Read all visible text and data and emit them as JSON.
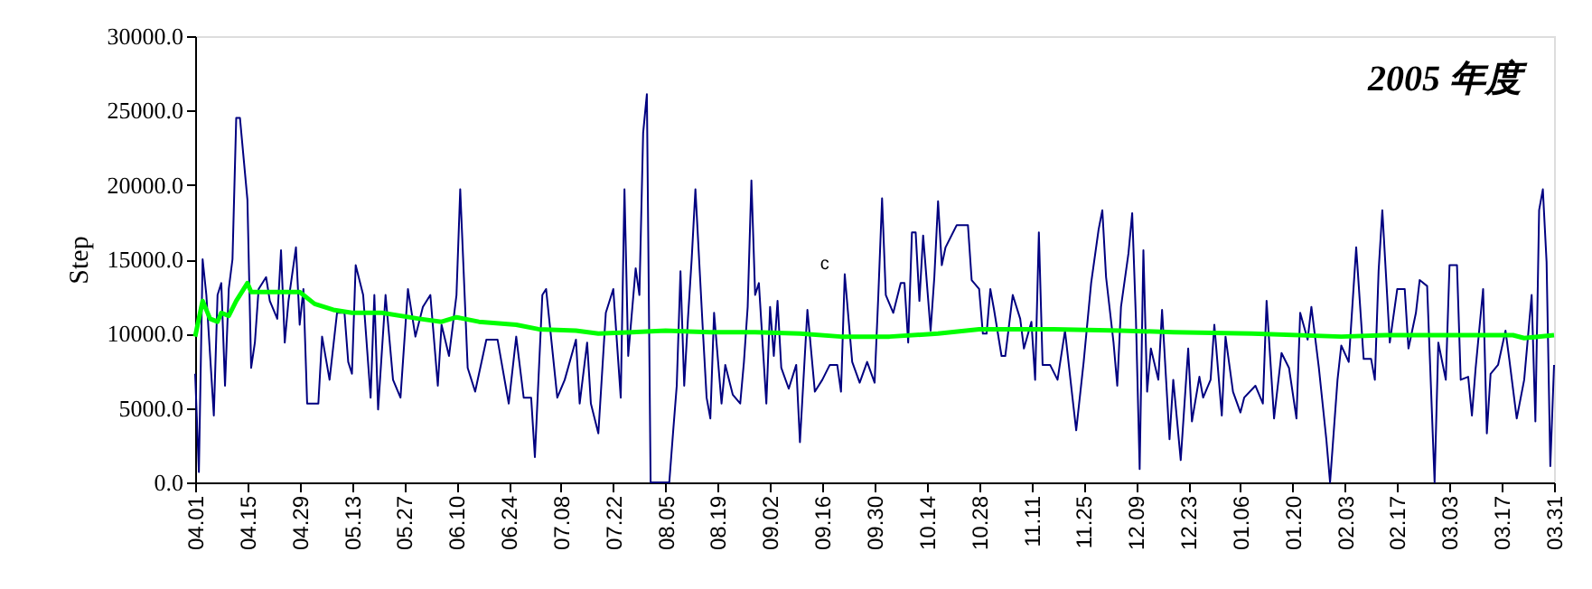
{
  "chart_data": {
    "type": "line",
    "title": "2005 年度",
    "ylabel": "Step",
    "xlim": [
      "2005-04-01",
      "2006-03-31"
    ],
    "ylim": [
      0,
      30000
    ],
    "xticks": [
      {
        "value": "2005-04-01",
        "label": "04.01"
      },
      {
        "value": "2005-04-15",
        "label": "04.15"
      },
      {
        "value": "2005-04-29",
        "label": "04.29"
      },
      {
        "value": "2005-05-13",
        "label": "05.13"
      },
      {
        "value": "2005-05-27",
        "label": "05.27"
      },
      {
        "value": "2005-06-10",
        "label": "06.10"
      },
      {
        "value": "2005-06-24",
        "label": "06.24"
      },
      {
        "value": "2005-07-08",
        "label": "07.08"
      },
      {
        "value": "2005-07-22",
        "label": "07.22"
      },
      {
        "value": "2005-08-05",
        "label": "08.05"
      },
      {
        "value": "2005-08-19",
        "label": "08.19"
      },
      {
        "value": "2005-09-02",
        "label": "09.02"
      },
      {
        "value": "2005-09-16",
        "label": "09.16"
      },
      {
        "value": "2005-09-30",
        "label": "09.30"
      },
      {
        "value": "2005-10-14",
        "label": "10.14"
      },
      {
        "value": "2005-10-28",
        "label": "10.28"
      },
      {
        "value": "2005-11-11",
        "label": "11.11"
      },
      {
        "value": "2005-11-25",
        "label": "11.25"
      },
      {
        "value": "2005-12-09",
        "label": "12.09"
      },
      {
        "value": "2005-12-23",
        "label": "12.23"
      },
      {
        "value": "2006-01-06",
        "label": "01.06"
      },
      {
        "value": "2006-01-20",
        "label": "01.20"
      },
      {
        "value": "2006-02-03",
        "label": "02.03"
      },
      {
        "value": "2006-02-17",
        "label": "02.17"
      },
      {
        "value": "2006-03-03",
        "label": "03.03"
      },
      {
        "value": "2006-03-17",
        "label": "03.17"
      },
      {
        "value": "2006-03-31",
        "label": "03.31"
      }
    ],
    "yticks": [
      {
        "value": 0,
        "label": "0.0"
      },
      {
        "value": 5000,
        "label": "5000.0"
      },
      {
        "value": 10000,
        "label": "10000.0"
      },
      {
        "value": 15000,
        "label": "15000.0"
      },
      {
        "value": 20000,
        "label": "20000.0"
      },
      {
        "value": 25000,
        "label": "25000.0"
      },
      {
        "value": 30000,
        "label": "30000.0"
      }
    ],
    "grid": false,
    "marker": "none",
    "line_style": "solid",
    "annotations": [
      "c"
    ],
    "series": [
      {
        "color": "#000080",
        "x": [
          "2005-04-01",
          "2005-04-02",
          "2005-04-03",
          "2005-04-04",
          "2005-04-06",
          "2005-04-07",
          "2005-04-08",
          "2005-04-09",
          "2005-04-10",
          "2005-04-11",
          "2005-04-12",
          "2005-04-13",
          "2005-04-15",
          "2005-04-16",
          "2005-04-17",
          "2005-04-18",
          "2005-04-20",
          "2005-04-21",
          "2005-04-23",
          "2005-04-24",
          "2005-04-25",
          "2005-04-26",
          "2005-04-28",
          "2005-04-29",
          "2005-04-30",
          "2005-05-01",
          "2005-05-04",
          "2005-05-05",
          "2005-05-07",
          "2005-05-09",
          "2005-05-11",
          "2005-05-12",
          "2005-05-13",
          "2005-05-14",
          "2005-05-16",
          "2005-05-18",
          "2005-05-19",
          "2005-05-20",
          "2005-05-22",
          "2005-05-24",
          "2005-05-26",
          "2005-05-28",
          "2005-05-30",
          "2005-06-01",
          "2005-06-03",
          "2005-06-05",
          "2005-06-06",
          "2005-06-08",
          "2005-06-10",
          "2005-06-11",
          "2005-06-13",
          "2005-06-15",
          "2005-06-18",
          "2005-06-21",
          "2005-06-24",
          "2005-06-26",
          "2005-06-28",
          "2005-06-30",
          "2005-07-01",
          "2005-07-03",
          "2005-07-04",
          "2005-07-07",
          "2005-07-09",
          "2005-07-12",
          "2005-07-13",
          "2005-07-15",
          "2005-07-16",
          "2005-07-18",
          "2005-07-20",
          "2005-07-22",
          "2005-07-24",
          "2005-07-25",
          "2005-07-26",
          "2005-07-28",
          "2005-07-29",
          "2005-07-30",
          "2005-07-31",
          "2005-08-01",
          "2005-08-06",
          "2005-08-07",
          "2005-08-08",
          "2005-08-09",
          "2005-08-10",
          "2005-08-11",
          "2005-08-12",
          "2005-08-13",
          "2005-08-15",
          "2005-08-16",
          "2005-08-17",
          "2005-08-18",
          "2005-08-20",
          "2005-08-21",
          "2005-08-23",
          "2005-08-25",
          "2005-08-26",
          "2005-08-27",
          "2005-08-28",
          "2005-08-29",
          "2005-08-30",
          "2005-09-01",
          "2005-09-02",
          "2005-09-03",
          "2005-09-04",
          "2005-09-05",
          "2005-09-07",
          "2005-09-09",
          "2005-09-10",
          "2005-09-12",
          "2005-09-14",
          "2005-09-16",
          "2005-09-18",
          "2005-09-20",
          "2005-09-21",
          "2005-09-22",
          "2005-09-24",
          "2005-09-26",
          "2005-09-28",
          "2005-09-30",
          "2005-10-01",
          "2005-10-02",
          "2005-10-03",
          "2005-10-05",
          "2005-10-07",
          "2005-10-08",
          "2005-10-09",
          "2005-10-10",
          "2005-10-11",
          "2005-10-12",
          "2005-10-13",
          "2005-10-15",
          "2005-10-16",
          "2005-10-17",
          "2005-10-18",
          "2005-10-19",
          "2005-10-22",
          "2005-10-25",
          "2005-10-26",
          "2005-10-28",
          "2005-10-29",
          "2005-10-30",
          "2005-10-31",
          "2005-11-01",
          "2005-11-03",
          "2005-11-04",
          "2005-11-06",
          "2005-11-08",
          "2005-11-09",
          "2005-11-11",
          "2005-11-12",
          "2005-11-13",
          "2005-11-14",
          "2005-11-16",
          "2005-11-18",
          "2005-11-20",
          "2005-11-22",
          "2005-11-23",
          "2005-11-25",
          "2005-11-27",
          "2005-11-29",
          "2005-11-30",
          "2005-12-01",
          "2005-12-03",
          "2005-12-04",
          "2005-12-05",
          "2005-12-07",
          "2005-12-08",
          "2005-12-09",
          "2005-12-10",
          "2005-12-11",
          "2005-12-12",
          "2005-12-13",
          "2005-12-15",
          "2005-12-16",
          "2005-12-18",
          "2005-12-19",
          "2005-12-21",
          "2005-12-23",
          "2005-12-24",
          "2005-12-26",
          "2005-12-27",
          "2005-12-29",
          "2005-12-30",
          "2006-01-01",
          "2006-01-02",
          "2006-01-04",
          "2006-01-06",
          "2006-01-07",
          "2006-01-10",
          "2006-01-12",
          "2006-01-13",
          "2006-01-15",
          "2006-01-17",
          "2006-01-19",
          "2006-01-21",
          "2006-01-22",
          "2006-01-24",
          "2006-01-25",
          "2006-01-27",
          "2006-01-29",
          "2006-01-30",
          "2006-02-01",
          "2006-02-02",
          "2006-02-04",
          "2006-02-06",
          "2006-02-08",
          "2006-02-10",
          "2006-02-11",
          "2006-02-12",
          "2006-02-13",
          "2006-02-15",
          "2006-02-17",
          "2006-02-19",
          "2006-02-20",
          "2006-02-22",
          "2006-02-23",
          "2006-02-25",
          "2006-02-27",
          "2006-02-28",
          "2006-03-02",
          "2006-03-03",
          "2006-03-05",
          "2006-03-06",
          "2006-03-08",
          "2006-03-09",
          "2006-03-10",
          "2006-03-12",
          "2006-03-13",
          "2006-03-14",
          "2006-03-16",
          "2006-03-18",
          "2006-03-19",
          "2006-03-21",
          "2006-03-23",
          "2006-03-25",
          "2006-03-26",
          "2006-03-27",
          "2006-03-28",
          "2006-03-29",
          "2006-03-30",
          "2006-03-31"
        ],
        "values": [
          7300,
          700,
          15000,
          12600,
          4500,
          12600,
          13400,
          6500,
          13000,
          15000,
          24500,
          24500,
          19000,
          7700,
          9400,
          13000,
          13800,
          12200,
          11000,
          15600,
          9400,
          12200,
          15800,
          10600,
          13000,
          5300,
          5300,
          9800,
          6900,
          11400,
          11400,
          8100,
          7300,
          14600,
          12600,
          5700,
          12600,
          4900,
          12600,
          6900,
          5700,
          13000,
          9800,
          11800,
          12600,
          6500,
          10600,
          8500,
          12600,
          19700,
          7700,
          6100,
          9600,
          9600,
          5300,
          9800,
          5700,
          5700,
          1700,
          12600,
          13000,
          5700,
          6900,
          9600,
          5300,
          9400,
          5300,
          3300,
          11400,
          13000,
          5700,
          19700,
          8500,
          14400,
          12600,
          23500,
          26100,
          0,
          0,
          3300,
          6500,
          14200,
          6500,
          11000,
          15000,
          19700,
          10200,
          5700,
          4300,
          11400,
          5300,
          7900,
          5900,
          5300,
          8100,
          11800,
          20300,
          12600,
          13400,
          5300,
          11800,
          8500,
          12200,
          7700,
          6300,
          7900,
          2700,
          11600,
          6100,
          6900,
          7900,
          7900,
          6100,
          14000,
          8100,
          6700,
          8100,
          6700,
          12600,
          19100,
          12600,
          11400,
          13400,
          13400,
          9400,
          16800,
          16800,
          12200,
          16600,
          10200,
          13800,
          18900,
          14600,
          15800,
          17300,
          17300,
          13600,
          13000,
          10000,
          10000,
          13000,
          11600,
          8500,
          8500,
          12600,
          11000,
          9000,
          10800,
          6900,
          16800,
          7900,
          7900,
          6900,
          10200,
          5700,
          3500,
          8100,
          13400,
          17000,
          18300,
          13800,
          9400,
          6500,
          11800,
          15400,
          18100,
          11000,
          900,
          15600,
          6100,
          9000,
          6900,
          11600,
          2900,
          6900,
          1500,
          9000,
          4100,
          7100,
          5700,
          6900,
          10600,
          4500,
          9800,
          6100,
          4700,
          5700,
          6500,
          5300,
          12200,
          4300,
          8700,
          7700,
          4300,
          11400,
          9600,
          11800,
          7700,
          2900,
          0,
          6900,
          9200,
          8100,
          15800,
          8300,
          8300,
          6900,
          14200,
          18300,
          9400,
          13000,
          13000,
          9000,
          11400,
          13600,
          13200,
          0,
          9400,
          6900,
          14600,
          14600,
          6900,
          7100,
          4500,
          7700,
          13000,
          3300,
          7300,
          7900,
          10200,
          8300,
          4300,
          6900,
          12600,
          4100,
          18300,
          19700,
          14800,
          1100,
          7900
        ]
      },
      {
        "color": "#00ff00",
        "x": [
          "2005-04-01",
          "2005-04-03",
          "2005-04-05",
          "2005-04-07",
          "2005-04-08",
          "2005-04-10",
          "2005-04-12",
          "2005-04-15",
          "2005-04-16",
          "2005-04-23",
          "2005-04-29",
          "2005-05-03",
          "2005-05-08",
          "2005-05-13",
          "2005-05-21",
          "2005-05-31",
          "2005-06-06",
          "2005-06-10",
          "2005-06-16",
          "2005-06-26",
          "2005-07-02",
          "2005-07-12",
          "2005-07-18",
          "2005-07-27",
          "2005-08-05",
          "2005-08-17",
          "2005-08-29",
          "2005-09-10",
          "2005-09-21",
          "2005-10-04",
          "2005-10-17",
          "2005-10-28",
          "2005-11-17",
          "2005-12-05",
          "2005-12-19",
          "2006-01-09",
          "2006-02-02",
          "2006-02-14",
          "2006-03-20",
          "2006-03-23",
          "2006-03-31"
        ],
        "values": [
          9800,
          12200,
          11000,
          10800,
          11400,
          11200,
          12200,
          13400,
          12800,
          12800,
          12800,
          12000,
          11600,
          11400,
          11400,
          11000,
          10800,
          11100,
          10800,
          10600,
          10300,
          10200,
          10000,
          10100,
          10200,
          10100,
          10100,
          10000,
          9800,
          9800,
          10000,
          10300,
          10300,
          10200,
          10100,
          10000,
          9800,
          9900,
          9900,
          9700,
          9900
        ]
      }
    ]
  }
}
